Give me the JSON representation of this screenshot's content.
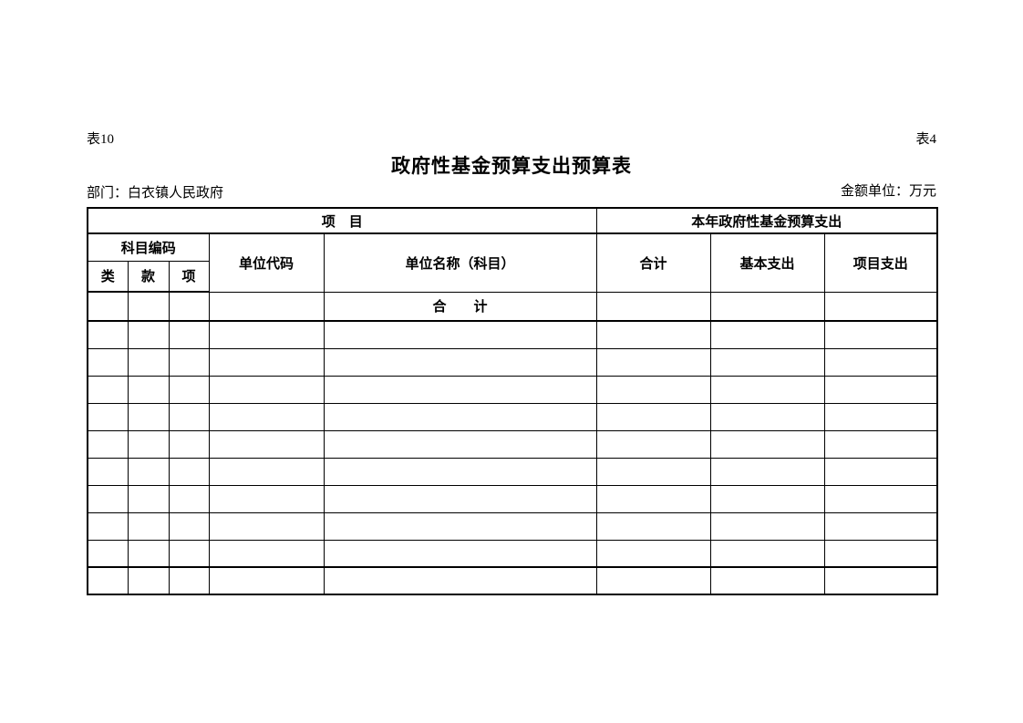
{
  "page": {
    "form_number_left": "表10",
    "form_number_right": "表4",
    "title": "政府性基金预算支出预算表",
    "department_line": "部门：白衣镇人民政府",
    "amount_unit_line": "金额单位：万元"
  },
  "table": {
    "group_header": {
      "left": "项　目",
      "right": "本年政府性基金预算支出"
    },
    "columns": {
      "subject_code_group": "科目编码",
      "category": "类",
      "section": "款",
      "item": "项",
      "unit_code": "单位代码",
      "unit_name": "单位名称（科目）",
      "total": "合计",
      "basic_expenditure": "基本支出",
      "project_expenditure": "项目支出"
    },
    "rows": [
      [
        "",
        "",
        "",
        "",
        "合　　计",
        "",
        "",
        ""
      ],
      [
        "",
        "",
        "",
        "",
        "",
        "",
        "",
        ""
      ],
      [
        "",
        "",
        "",
        "",
        "",
        "",
        "",
        ""
      ],
      [
        "",
        "",
        "",
        "",
        "",
        "",
        "",
        ""
      ],
      [
        "",
        "",
        "",
        "",
        "",
        "",
        "",
        ""
      ],
      [
        "",
        "",
        "",
        "",
        "",
        "",
        "",
        ""
      ],
      [
        "",
        "",
        "",
        "",
        "",
        "",
        "",
        ""
      ],
      [
        "",
        "",
        "",
        "",
        "",
        "",
        "",
        ""
      ],
      [
        "",
        "",
        "",
        "",
        "",
        "",
        "",
        ""
      ],
      [
        "",
        "",
        "",
        "",
        "",
        "",
        "",
        ""
      ],
      [
        "",
        "",
        "",
        "",
        "",
        "",
        "",
        ""
      ]
    ]
  }
}
